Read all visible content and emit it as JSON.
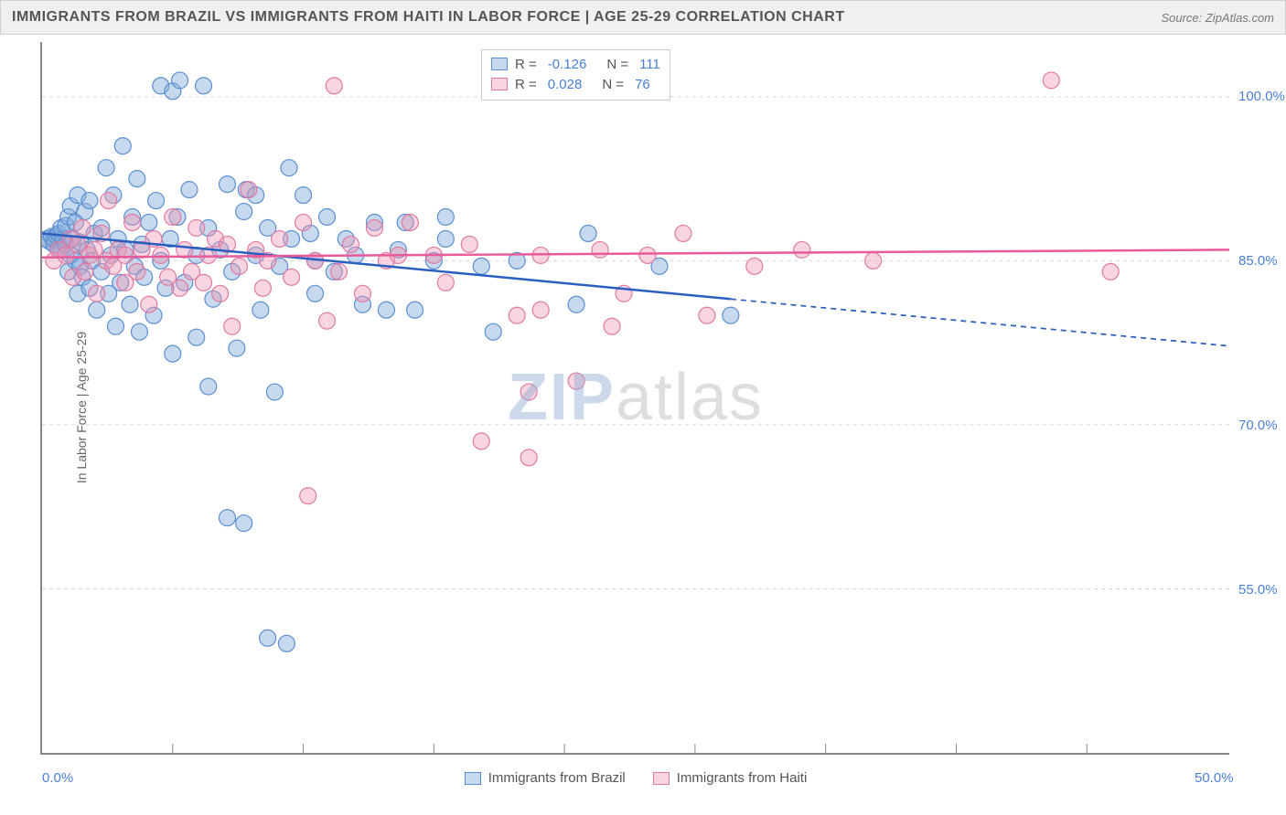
{
  "title": "IMMIGRANTS FROM BRAZIL VS IMMIGRANTS FROM HAITI IN LABOR FORCE | AGE 25-29 CORRELATION CHART",
  "source": "Source: ZipAtlas.com",
  "y_axis_label": "In Labor Force | Age 25-29",
  "watermark_z": "ZIP",
  "watermark_rest": "atlas",
  "chart": {
    "type": "scatter",
    "background_color": "#ffffff",
    "grid_color": "#d8d8d8",
    "grid_dash": "4,4",
    "axis_color": "#888888",
    "x_range": [
      0,
      50
    ],
    "y_range": [
      40,
      105
    ],
    "x_ticks": [
      0,
      50
    ],
    "x_tick_labels": [
      "0.0%",
      "50.0%"
    ],
    "x_minor_ticks": [
      5.5,
      11,
      16.5,
      22,
      27.5,
      33,
      38.5,
      44
    ],
    "y_ticks": [
      55,
      70,
      85,
      100
    ],
    "y_tick_labels": [
      "55.0%",
      "70.0%",
      "85.0%",
      "100.0%"
    ],
    "y_tick_label_color": "#4a7fd6",
    "x_tick_label_color": "#4a7fd6",
    "series": [
      {
        "name": "Immigrants from Brazil",
        "marker_fill": "rgba(130,170,220,0.45)",
        "marker_stroke": "#5a8fd0",
        "marker_radius": 9,
        "line_color": "#2a5fc0",
        "line_width": 2.5,
        "R": "-0.126",
        "N": "111",
        "trend": {
          "x1": 0,
          "y1": 87.5,
          "x2": 29,
          "y2": 81.5,
          "ext_x2": 50,
          "ext_y2": 77.2
        },
        "points": [
          [
            0.2,
            87
          ],
          [
            0.3,
            86.8
          ],
          [
            0.4,
            87.2
          ],
          [
            0.5,
            87
          ],
          [
            0.5,
            86.5
          ],
          [
            0.6,
            87.3
          ],
          [
            0.7,
            86
          ],
          [
            0.7,
            87.5
          ],
          [
            0.8,
            88
          ],
          [
            0.8,
            86
          ],
          [
            0.9,
            87
          ],
          [
            1.0,
            86.5
          ],
          [
            1.0,
            88.2
          ],
          [
            1.1,
            84
          ],
          [
            1.1,
            89
          ],
          [
            1.2,
            85.5
          ],
          [
            1.2,
            90
          ],
          [
            1.3,
            87
          ],
          [
            1.4,
            85
          ],
          [
            1.4,
            88.5
          ],
          [
            1.5,
            82
          ],
          [
            1.5,
            91
          ],
          [
            1.6,
            84.5
          ],
          [
            1.6,
            86.7
          ],
          [
            1.7,
            83.5
          ],
          [
            1.8,
            89.5
          ],
          [
            1.9,
            86
          ],
          [
            2.0,
            82.5
          ],
          [
            2.0,
            90.5
          ],
          [
            2.1,
            85
          ],
          [
            2.2,
            87.5
          ],
          [
            2.3,
            80.5
          ],
          [
            2.5,
            88
          ],
          [
            2.5,
            84
          ],
          [
            2.7,
            93.5
          ],
          [
            2.8,
            82
          ],
          [
            2.9,
            85.5
          ],
          [
            3.0,
            91
          ],
          [
            3.1,
            79
          ],
          [
            3.2,
            87
          ],
          [
            3.3,
            83
          ],
          [
            3.4,
            95.5
          ],
          [
            3.5,
            86
          ],
          [
            3.7,
            81
          ],
          [
            3.8,
            89
          ],
          [
            3.9,
            84.5
          ],
          [
            4.0,
            92.5
          ],
          [
            4.1,
            78.5
          ],
          [
            4.2,
            86.5
          ],
          [
            4.3,
            83.5
          ],
          [
            4.5,
            88.5
          ],
          [
            4.7,
            80
          ],
          [
            4.8,
            90.5
          ],
          [
            5.0,
            85
          ],
          [
            5.0,
            101
          ],
          [
            5.2,
            82.5
          ],
          [
            5.4,
            87
          ],
          [
            5.5,
            76.5
          ],
          [
            5.5,
            100.5
          ],
          [
            5.7,
            89
          ],
          [
            5.8,
            101.5
          ],
          [
            6.0,
            83
          ],
          [
            6.2,
            91.5
          ],
          [
            6.5,
            78
          ],
          [
            6.5,
            85.5
          ],
          [
            6.8,
            101
          ],
          [
            7.0,
            88
          ],
          [
            7.0,
            73.5
          ],
          [
            7.2,
            81.5
          ],
          [
            7.5,
            86
          ],
          [
            7.8,
            92
          ],
          [
            7.8,
            61.5
          ],
          [
            8.0,
            84
          ],
          [
            8.2,
            77
          ],
          [
            8.5,
            89.5
          ],
          [
            8.5,
            61
          ],
          [
            8.6,
            91.5
          ],
          [
            9.0,
            85.5
          ],
          [
            9.0,
            91
          ],
          [
            9.2,
            80.5
          ],
          [
            9.5,
            88
          ],
          [
            9.5,
            50.5
          ],
          [
            9.8,
            73
          ],
          [
            10.0,
            84.5
          ],
          [
            10.3,
            50
          ],
          [
            10.4,
            93.5
          ],
          [
            10.5,
            87
          ],
          [
            11.0,
            91
          ],
          [
            11.3,
            87.5
          ],
          [
            11.5,
            82
          ],
          [
            11.5,
            85
          ],
          [
            12.0,
            89
          ],
          [
            12.3,
            84
          ],
          [
            12.8,
            87
          ],
          [
            13.2,
            85.5
          ],
          [
            13.5,
            81
          ],
          [
            14.0,
            88.5
          ],
          [
            14.5,
            80.5
          ],
          [
            15.0,
            86
          ],
          [
            15.3,
            88.5
          ],
          [
            15.7,
            80.5
          ],
          [
            16.5,
            85
          ],
          [
            17.0,
            89
          ],
          [
            17.0,
            87
          ],
          [
            18.5,
            84.5
          ],
          [
            19.0,
            78.5
          ],
          [
            20.0,
            85
          ],
          [
            22.5,
            81
          ],
          [
            23.0,
            87.5
          ],
          [
            26.0,
            84.5
          ],
          [
            29.0,
            80
          ]
        ]
      },
      {
        "name": "Immigrants from Haiti",
        "marker_fill": "rgba(240,150,180,0.40)",
        "marker_stroke": "#e07aa0",
        "marker_radius": 9,
        "line_color": "#e85a9a",
        "line_width": 2.5,
        "R": "0.028",
        "N": "76",
        "trend": {
          "x1": 0,
          "y1": 85.3,
          "x2": 50,
          "y2": 86.0
        },
        "points": [
          [
            0.5,
            85
          ],
          [
            0.7,
            86
          ],
          [
            1.0,
            85.5
          ],
          [
            1.2,
            87
          ],
          [
            1.3,
            83.5
          ],
          [
            1.5,
            86.5
          ],
          [
            1.7,
            88
          ],
          [
            1.8,
            84
          ],
          [
            2.0,
            85.5
          ],
          [
            2.2,
            86
          ],
          [
            2.3,
            82
          ],
          [
            2.5,
            87.5
          ],
          [
            2.7,
            85
          ],
          [
            2.8,
            90.5
          ],
          [
            3.0,
            84.5
          ],
          [
            3.2,
            86
          ],
          [
            3.5,
            83
          ],
          [
            3.5,
            85.5
          ],
          [
            3.8,
            88.5
          ],
          [
            4.0,
            84
          ],
          [
            4.2,
            86
          ],
          [
            4.5,
            81
          ],
          [
            4.7,
            87
          ],
          [
            5.0,
            85.5
          ],
          [
            5.3,
            83.5
          ],
          [
            5.5,
            89
          ],
          [
            5.8,
            82.5
          ],
          [
            6.0,
            86
          ],
          [
            6.3,
            84
          ],
          [
            6.5,
            88
          ],
          [
            6.8,
            83
          ],
          [
            7.0,
            85.5
          ],
          [
            7.3,
            87
          ],
          [
            7.5,
            82
          ],
          [
            7.8,
            86.5
          ],
          [
            8.0,
            79
          ],
          [
            8.3,
            84.5
          ],
          [
            8.7,
            91.5
          ],
          [
            9.0,
            86
          ],
          [
            9.3,
            82.5
          ],
          [
            9.5,
            85
          ],
          [
            10.0,
            87
          ],
          [
            10.5,
            83.5
          ],
          [
            11.0,
            88.5
          ],
          [
            11.2,
            63.5
          ],
          [
            11.5,
            85
          ],
          [
            12.0,
            79.5
          ],
          [
            12.3,
            101
          ],
          [
            12.5,
            84
          ],
          [
            13.0,
            86.5
          ],
          [
            13.5,
            82
          ],
          [
            14.0,
            88
          ],
          [
            14.5,
            85
          ],
          [
            15.0,
            85.5
          ],
          [
            15.5,
            88.5
          ],
          [
            16.5,
            85.5
          ],
          [
            17.0,
            83
          ],
          [
            18.0,
            86.5
          ],
          [
            18.5,
            68.5
          ],
          [
            20.5,
            67
          ],
          [
            20.0,
            80
          ],
          [
            20.5,
            73
          ],
          [
            21.0,
            85.5
          ],
          [
            21.0,
            80.5
          ],
          [
            22.5,
            74
          ],
          [
            23.5,
            86
          ],
          [
            24.0,
            79
          ],
          [
            24.5,
            82
          ],
          [
            25.5,
            85.5
          ],
          [
            27.0,
            87.5
          ],
          [
            28.0,
            80
          ],
          [
            30.0,
            84.5
          ],
          [
            32.0,
            86
          ],
          [
            35.0,
            85
          ],
          [
            42.5,
            101.5
          ],
          [
            45.0,
            84
          ]
        ]
      }
    ]
  },
  "r_legend": {
    "rows": [
      {
        "swatch_fill": "rgba(130,170,220,0.45)",
        "swatch_stroke": "#5a8fd0",
        "r_label": "R =",
        "r_val": "-0.126",
        "n_label": "N =",
        "n_val": "111"
      },
      {
        "swatch_fill": "rgba(240,150,180,0.40)",
        "swatch_stroke": "#e07aa0",
        "r_label": "R =",
        "r_val": "0.028",
        "n_label": "N =",
        "n_val": "76"
      }
    ]
  },
  "bottom_legend": {
    "items": [
      {
        "swatch_fill": "rgba(130,170,220,0.45)",
        "swatch_stroke": "#5a8fd0",
        "label": "Immigrants from Brazil"
      },
      {
        "swatch_fill": "rgba(240,150,180,0.40)",
        "swatch_stroke": "#e07aa0",
        "label": "Immigrants from Haiti"
      }
    ]
  }
}
